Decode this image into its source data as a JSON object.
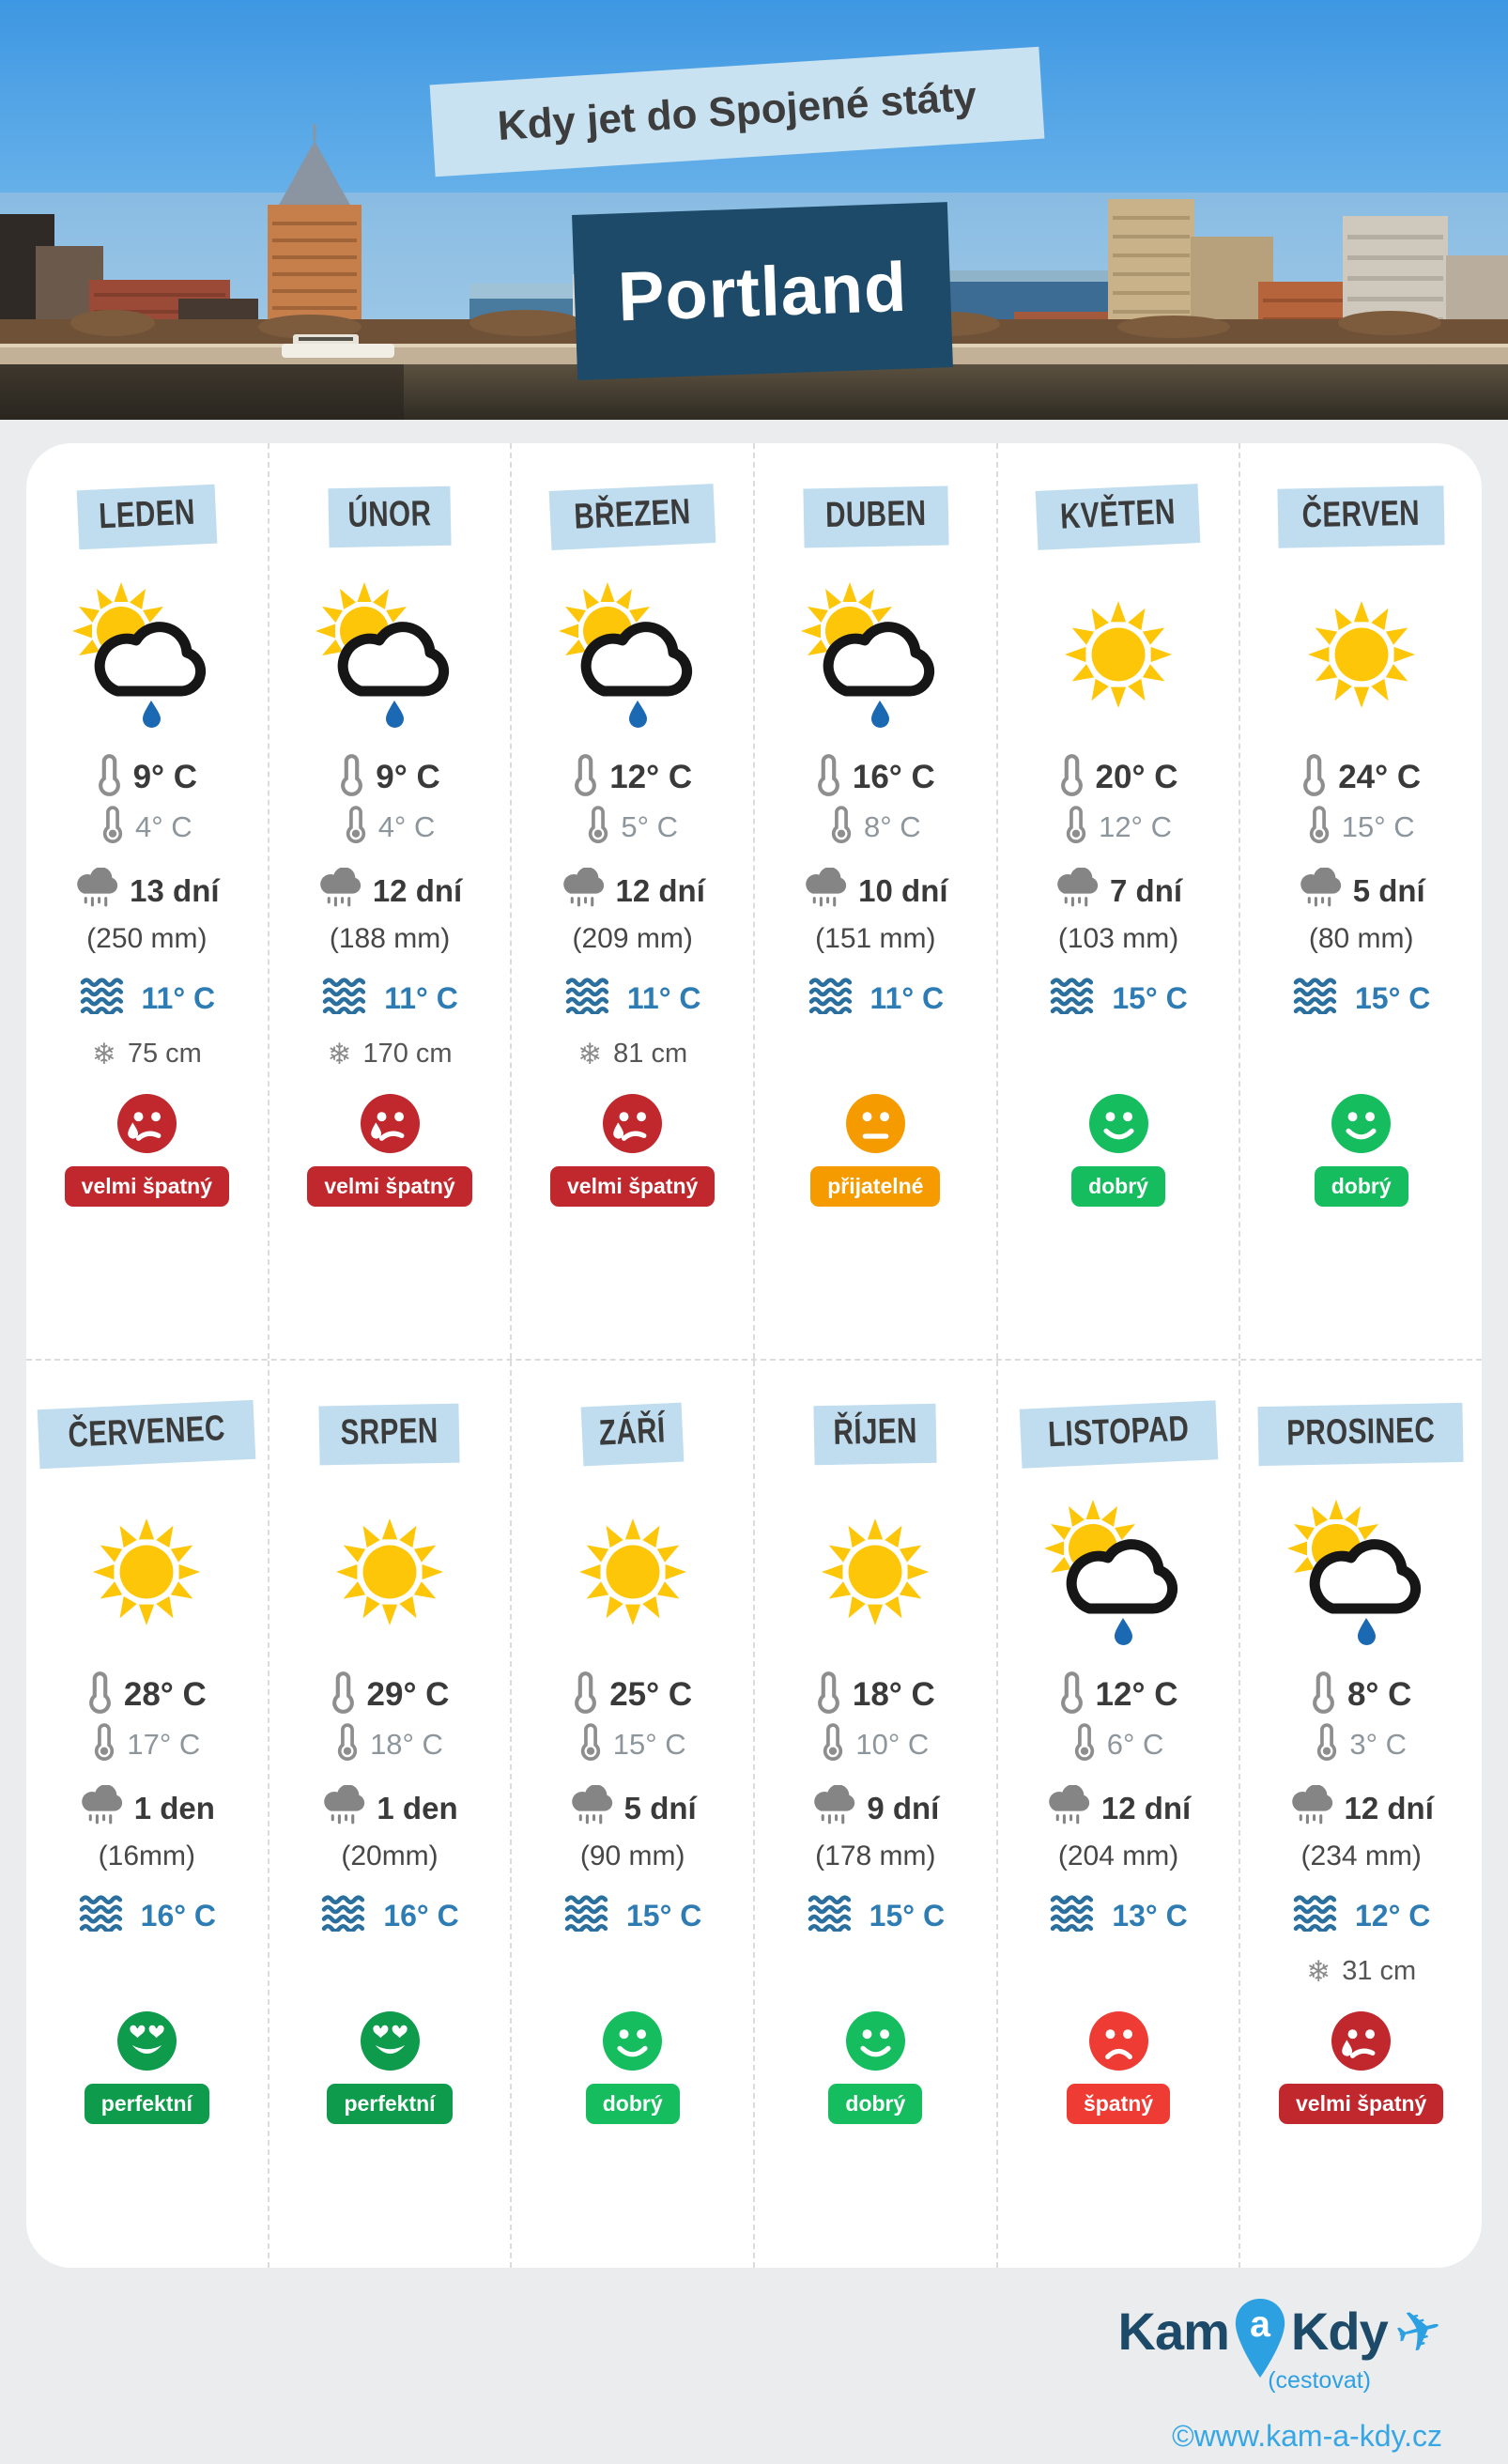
{
  "header": {
    "title": "Kdy jet do Spojené státy",
    "city": "Portland"
  },
  "months": [
    {
      "name": "LEDEN",
      "icon": "sun-cloud-rain",
      "high": "9° C",
      "low": "4° C",
      "rain_days": "13 dní",
      "precip": "(250 mm)",
      "water": "11° C",
      "snow": "75 cm",
      "mood": "very-bad",
      "rating": "velmi špatný"
    },
    {
      "name": "ÚNOR",
      "icon": "sun-cloud-rain",
      "high": "9° C",
      "low": "4° C",
      "rain_days": "12 dní",
      "precip": "(188 mm)",
      "water": "11° C",
      "snow": "170 cm",
      "mood": "very-bad",
      "rating": "velmi špatný"
    },
    {
      "name": "BŘEZEN",
      "icon": "sun-cloud-rain",
      "high": "12° C",
      "low": "5° C",
      "rain_days": "12 dní",
      "precip": "(209 mm)",
      "water": "11° C",
      "snow": "81 cm",
      "mood": "very-bad",
      "rating": "velmi špatný"
    },
    {
      "name": "DUBEN",
      "icon": "sun-cloud-rain",
      "high": "16° C",
      "low": "8° C",
      "rain_days": "10 dní",
      "precip": "(151 mm)",
      "water": "11° C",
      "snow": null,
      "mood": "neutral",
      "rating": "přijatelné"
    },
    {
      "name": "KVĚTEN",
      "icon": "sun",
      "high": "20° C",
      "low": "12° C",
      "rain_days": "7 dní",
      "precip": "(103 mm)",
      "water": "15° C",
      "snow": null,
      "mood": "good",
      "rating": "dobrý"
    },
    {
      "name": "ČERVEN",
      "icon": "sun",
      "high": "24° C",
      "low": "15° C",
      "rain_days": "5 dní",
      "precip": "(80 mm)",
      "water": "15° C",
      "snow": null,
      "mood": "good",
      "rating": "dobrý"
    },
    {
      "name": "ČERVENEC",
      "icon": "sun",
      "high": "28° C",
      "low": "17° C",
      "rain_days": "1 den",
      "precip": "(16mm)",
      "water": "16° C",
      "snow": null,
      "mood": "perfect",
      "rating": "perfektní"
    },
    {
      "name": "SRPEN",
      "icon": "sun",
      "high": "29° C",
      "low": "18° C",
      "rain_days": "1 den",
      "precip": "(20mm)",
      "water": "16° C",
      "snow": null,
      "mood": "perfect",
      "rating": "perfektní"
    },
    {
      "name": "ZÁŘÍ",
      "icon": "sun",
      "high": "25° C",
      "low": "15° C",
      "rain_days": "5 dní",
      "precip": "(90 mm)",
      "water": "15° C",
      "snow": null,
      "mood": "good",
      "rating": "dobrý"
    },
    {
      "name": "ŘÍJEN",
      "icon": "sun",
      "high": "18° C",
      "low": "10° C",
      "rain_days": "9 dní",
      "precip": "(178 mm)",
      "water": "15° C",
      "snow": null,
      "mood": "good",
      "rating": "dobrý"
    },
    {
      "name": "LISTOPAD",
      "icon": "sun-cloud-rain",
      "high": "12° C",
      "low": "6° C",
      "rain_days": "12 dní",
      "precip": "(204 mm)",
      "water": "13° C",
      "snow": null,
      "mood": "bad",
      "rating": "špatný"
    },
    {
      "name": "PROSINEC",
      "icon": "sun-cloud-rain",
      "high": "8° C",
      "low": "3° C",
      "rain_days": "12 dní",
      "precip": "(234 mm)",
      "water": "12° C",
      "snow": "31 cm",
      "mood": "very-bad",
      "rating": "velmi špatný"
    }
  ],
  "footer": {
    "logo_kam": "Kam",
    "logo_a": "a",
    "logo_kdy": "Kdy",
    "tagline": "(cestovat)",
    "copyright": "©www.kam-a-kdy.cz"
  },
  "colors": {
    "very_bad": "#c0282d",
    "bad": "#ee3b33",
    "neutral": "#f59b00",
    "good": "#16bd5f",
    "perfect": "#0f9b4c",
    "navy": "#1d4a68",
    "accent_blue": "#2da0e2",
    "label_bg": "#bfddef",
    "water_text": "#2e7cb4",
    "sun_yellow": "#fdc608",
    "rain_drop": "#1b69b3"
  }
}
